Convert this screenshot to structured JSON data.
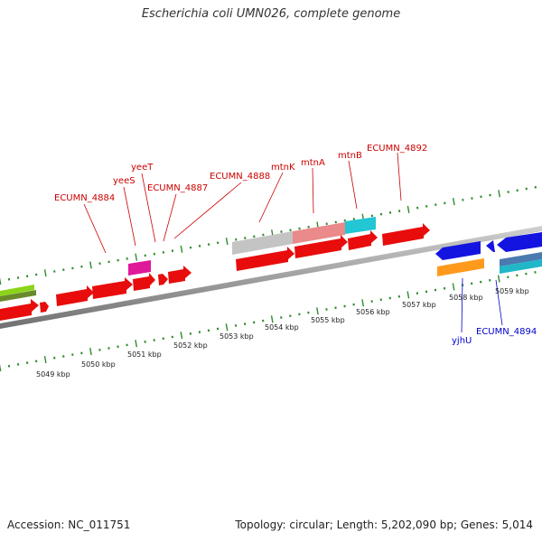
{
  "title": "Escherichia coli UMN026, complete genome",
  "footer": {
    "accession": "Accession: NC_011751",
    "topology": "Topology: circular; Length: 5,202,090 bp; Genes: 5,014"
  },
  "colors": {
    "gene_label_forward": "#cc0000",
    "gene_label_reverse": "#0000cc",
    "tick": "#2e8b2e",
    "backbone": "#888888"
  },
  "scale_labels": [
    "5049 kbp",
    "5050 kbp",
    "5051 kbp",
    "5052 kbp",
    "5053 kbp",
    "5054 kbp",
    "5055 kbp",
    "5056 kbp",
    "5057 kbp",
    "5058 kbp",
    "5059 kbp"
  ],
  "gene_labels_forward": [
    "ECUMN_4884",
    "yeeS",
    "yeeT",
    "ECUMN_4887",
    "ECUMN_4888",
    "mtnK",
    "mtnA",
    "mtnB",
    "ECUMN_4892"
  ],
  "gene_labels_reverse": [
    "yjhU",
    "ECUMN_4894"
  ]
}
